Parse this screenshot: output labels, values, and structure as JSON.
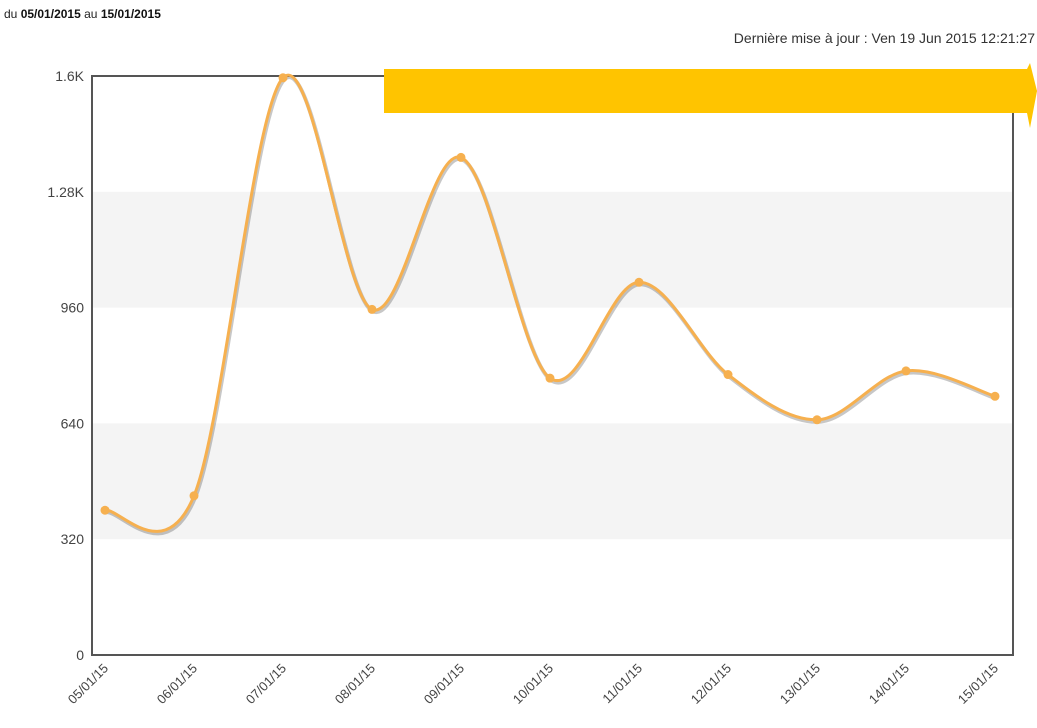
{
  "header": {
    "range_prefix": "du",
    "range_start": "05/01/2015",
    "range_mid": "au",
    "range_end": "15/01/2015",
    "updated": "Dernière mise à jour : Ven 19 Jun 2015 12:21:27"
  },
  "colors": {
    "series": "#f6b04f",
    "banner": "#ffc400",
    "band": "#f4f4f4",
    "frame": "#555555"
  },
  "chart_data": {
    "type": "line",
    "smooth": true,
    "x": [
      "05/01/15",
      "06/01/15",
      "07/01/15",
      "08/01/15",
      "09/01/15",
      "10/01/15",
      "11/01/15",
      "12/01/15",
      "13/01/15",
      "14/01/15",
      "15/01/15"
    ],
    "series": [
      {
        "values": [
          400,
          440,
          1595,
          955,
          1375,
          765,
          1030,
          775,
          650,
          785,
          715
        ]
      }
    ],
    "ylim": [
      0,
      1600
    ],
    "y_ticks": [
      {
        "value": 0,
        "label": "0"
      },
      {
        "value": 320,
        "label": "320"
      },
      {
        "value": 640,
        "label": "640"
      },
      {
        "value": 960,
        "label": "960"
      },
      {
        "value": 1280,
        "label": "1.28K"
      },
      {
        "value": 1600,
        "label": "1.6K"
      }
    ],
    "alternating_bands": true,
    "legend": "none"
  }
}
